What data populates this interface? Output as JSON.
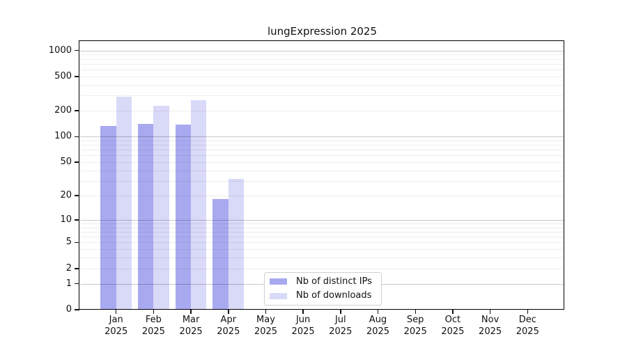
{
  "chart_data": {
    "type": "bar",
    "title": "lungExpression 2025",
    "categories": [
      "Jan 2025",
      "Feb 2025",
      "Mar 2025",
      "Apr 2025",
      "May 2025",
      "Jun 2025",
      "Jul 2025",
      "Aug 2025",
      "Sep 2025",
      "Oct 2025",
      "Nov 2025",
      "Dec 2025"
    ],
    "series": [
      {
        "name": "Nb of distinct IPs",
        "color": "#a9a9f0",
        "values": [
          133,
          140,
          137,
          18,
          null,
          null,
          null,
          null,
          null,
          null,
          null,
          null
        ]
      },
      {
        "name": "Nb of downloads",
        "color": "#d9d9f8",
        "values": [
          290,
          228,
          265,
          32,
          null,
          null,
          null,
          null,
          null,
          null,
          null,
          null
        ]
      }
    ],
    "xlabel": "",
    "ylabel": "",
    "y_scale": "log1p",
    "y_ticks": [
      0,
      1,
      2,
      5,
      10,
      20,
      50,
      100,
      200,
      500,
      1000
    ],
    "ylim": [
      0,
      1280
    ],
    "grid": true,
    "legend_position": "lower center-left"
  },
  "colors": {
    "distinct_ips_bar": "#a9a9f0",
    "downloads_bar": "#d9d9f8",
    "major_gridline": "#c4c4c4",
    "minor_gridline": "#ececec",
    "axis": "#000000"
  }
}
